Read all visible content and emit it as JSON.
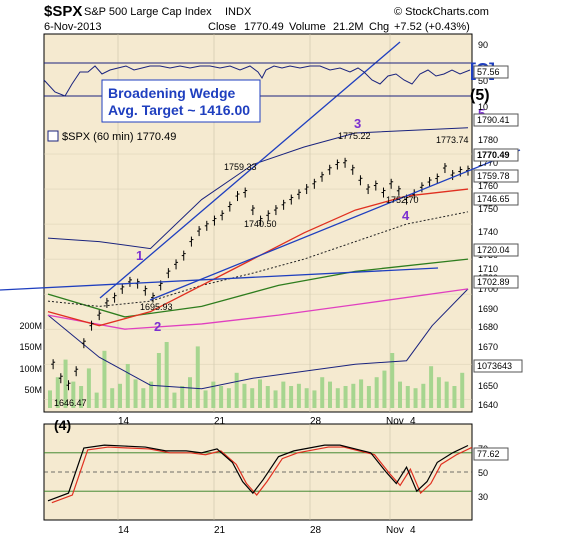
{
  "header": {
    "symbol": "$SPX",
    "name": "S&P 500 Large Cap Index",
    "exchange": "INDX",
    "watermark": "© StockCharts.com",
    "date": "6-Nov-2013",
    "close_label": "Close",
    "close": "1770.49",
    "volume_label": "Volume",
    "volume": "21.2M",
    "chg_label": "Chg",
    "chg": "+7.52 (+0.43%)"
  },
  "colors": {
    "panel_bg": "#f5ead0",
    "price": "#000000",
    "ma_red": "#e03020",
    "ma_green": "#2e7d1e",
    "ma_magenta": "#e040c0",
    "bollinger": "#1a237e",
    "trend_lines": "#1f3fbf",
    "volume_bar": "#a6d58f",
    "wave_label": "#7b2fd0",
    "rsi_line": "#000000",
    "rsi_signal": "#e03020"
  },
  "price_panel": {
    "legend": "$SPX (60 min) 1770.49",
    "annotation": {
      "line1": "Broadening Wedge",
      "line2": "Avg. Target ~ 1416.00"
    },
    "y_ticks": [
      "1780",
      "1770",
      "1760",
      "1750",
      "1740",
      "1730",
      "1720",
      "1710",
      "1700",
      "1690",
      "1680",
      "1670",
      "1660",
      "1650",
      "1640"
    ],
    "top_ticks": [
      "90",
      "50",
      "10"
    ],
    "volume_ticks": [
      "200M",
      "150M",
      "100M",
      "50M"
    ],
    "price_labels": [
      "1759.33",
      "1775.22",
      "1773.74",
      "1740.50",
      "1752.70",
      "1695.93",
      "1646.47"
    ],
    "right_tags": [
      "57.56",
      "1790.41",
      "1770.49",
      "1759.78",
      "1746.65",
      "1720.04",
      "1702.89",
      "1073643"
    ],
    "wave_labels": [
      "1",
      "2",
      "3",
      "4",
      "5"
    ],
    "corner_labels": {
      "c": "[C]",
      "five": "(5)"
    }
  },
  "rsi_panel": {
    "label": "(4)",
    "ticks": [
      "70",
      "50",
      "30"
    ],
    "value": "77.62"
  },
  "x_axis": {
    "labels": [
      "14",
      "21",
      "28",
      "Nov",
      "4"
    ]
  },
  "chart_data": {
    "type": "line",
    "title": "$SPX S&P 500 Large Cap Index INDX",
    "ylim": [
      1635,
      1788
    ],
    "candles": [
      {
        "x": 2,
        "y": 1660
      },
      {
        "x": 5,
        "y": 1652
      },
      {
        "x": 8,
        "y": 1648
      },
      {
        "x": 11,
        "y": 1656
      },
      {
        "x": 14,
        "y": 1672
      },
      {
        "x": 17,
        "y": 1682
      },
      {
        "x": 20,
        "y": 1688
      },
      {
        "x": 23,
        "y": 1695
      },
      {
        "x": 26,
        "y": 1698
      },
      {
        "x": 29,
        "y": 1703
      },
      {
        "x": 32,
        "y": 1707
      },
      {
        "x": 35,
        "y": 1706
      },
      {
        "x": 38,
        "y": 1702
      },
      {
        "x": 41,
        "y": 1698
      },
      {
        "x": 44,
        "y": 1705
      },
      {
        "x": 47,
        "y": 1712
      },
      {
        "x": 50,
        "y": 1717
      },
      {
        "x": 53,
        "y": 1722
      },
      {
        "x": 56,
        "y": 1730
      },
      {
        "x": 59,
        "y": 1736
      },
      {
        "x": 62,
        "y": 1739
      },
      {
        "x": 65,
        "y": 1742
      },
      {
        "x": 68,
        "y": 1745
      },
      {
        "x": 71,
        "y": 1750
      },
      {
        "x": 74,
        "y": 1756
      },
      {
        "x": 77,
        "y": 1758
      },
      {
        "x": 80,
        "y": 1748
      },
      {
        "x": 83,
        "y": 1742
      },
      {
        "x": 86,
        "y": 1745
      },
      {
        "x": 89,
        "y": 1748
      },
      {
        "x": 92,
        "y": 1751
      },
      {
        "x": 95,
        "y": 1754
      },
      {
        "x": 98,
        "y": 1757
      },
      {
        "x": 101,
        "y": 1760
      },
      {
        "x": 104,
        "y": 1763
      },
      {
        "x": 107,
        "y": 1767
      },
      {
        "x": 110,
        "y": 1771
      },
      {
        "x": 113,
        "y": 1774
      },
      {
        "x": 116,
        "y": 1775
      },
      {
        "x": 119,
        "y": 1771
      },
      {
        "x": 122,
        "y": 1765
      },
      {
        "x": 125,
        "y": 1760
      },
      {
        "x": 128,
        "y": 1762
      },
      {
        "x": 131,
        "y": 1758
      },
      {
        "x": 134,
        "y": 1763
      },
      {
        "x": 137,
        "y": 1759
      },
      {
        "x": 140,
        "y": 1754
      },
      {
        "x": 143,
        "y": 1757
      },
      {
        "x": 146,
        "y": 1761
      },
      {
        "x": 149,
        "y": 1764
      },
      {
        "x": 152,
        "y": 1766
      },
      {
        "x": 155,
        "y": 1772
      },
      {
        "x": 158,
        "y": 1768
      },
      {
        "x": 161,
        "y": 1770
      },
      {
        "x": 164,
        "y": 1770.5
      }
    ],
    "ma_red": [
      [
        0,
        1690
      ],
      [
        20,
        1682
      ],
      [
        40,
        1690
      ],
      [
        60,
        1705
      ],
      [
        80,
        1720
      ],
      [
        100,
        1735
      ],
      [
        120,
        1748
      ],
      [
        140,
        1756
      ],
      [
        164,
        1760
      ]
    ],
    "ma_dotted": [
      [
        0,
        1696
      ],
      [
        20,
        1693
      ],
      [
        40,
        1696
      ],
      [
        60,
        1705
      ],
      [
        80,
        1712
      ],
      [
        100,
        1720
      ],
      [
        120,
        1730
      ],
      [
        140,
        1740
      ],
      [
        164,
        1747
      ]
    ],
    "ma_green": [
      [
        0,
        1700
      ],
      [
        30,
        1687
      ],
      [
        60,
        1693
      ],
      [
        90,
        1705
      ],
      [
        120,
        1713
      ],
      [
        164,
        1720
      ]
    ],
    "ma_magenta": [
      [
        0,
        1688
      ],
      [
        30,
        1680
      ],
      [
        60,
        1683
      ],
      [
        90,
        1688
      ],
      [
        120,
        1694
      ],
      [
        164,
        1703
      ]
    ],
    "bollinger_upper": [
      [
        0,
        1732
      ],
      [
        20,
        1730
      ],
      [
        40,
        1726
      ],
      [
        60,
        1754
      ],
      [
        80,
        1774
      ],
      [
        100,
        1784
      ],
      [
        120,
        1792
      ],
      [
        164,
        1795
      ]
    ],
    "bollinger_lower": [
      [
        0,
        1688
      ],
      [
        20,
        1664
      ],
      [
        40,
        1648
      ],
      [
        60,
        1646
      ],
      [
        80,
        1652
      ],
      [
        100,
        1656
      ],
      [
        120,
        1660
      ],
      [
        140,
        1662
      ],
      [
        150,
        1682
      ],
      [
        164,
        1703
      ]
    ],
    "volume": [
      8,
      14,
      22,
      12,
      10,
      18,
      7,
      26,
      9,
      11,
      20,
      13,
      9,
      12,
      25,
      30,
      7,
      10,
      14,
      28,
      8,
      12,
      10,
      9,
      16,
      11,
      9,
      13,
      10,
      8,
      12,
      10,
      11,
      9,
      8,
      14,
      12,
      9,
      10,
      11,
      13,
      10,
      14,
      17,
      25,
      12,
      10,
      9,
      11,
      19,
      14,
      12,
      10,
      16
    ],
    "rsi": [
      [
        0,
        20
      ],
      [
        8,
        28
      ],
      [
        14,
        75
      ],
      [
        22,
        78
      ],
      [
        30,
        77
      ],
      [
        38,
        76
      ],
      [
        46,
        72
      ],
      [
        54,
        72
      ],
      [
        60,
        70
      ],
      [
        66,
        74
      ],
      [
        72,
        60
      ],
      [
        76,
        40
      ],
      [
        80,
        28
      ],
      [
        84,
        42
      ],
      [
        90,
        66
      ],
      [
        96,
        72
      ],
      [
        102,
        75
      ],
      [
        108,
        78
      ],
      [
        114,
        78
      ],
      [
        120,
        74
      ],
      [
        126,
        70
      ],
      [
        132,
        50
      ],
      [
        136,
        38
      ],
      [
        140,
        55
      ],
      [
        144,
        30
      ],
      [
        148,
        40
      ],
      [
        152,
        60
      ],
      [
        158,
        70
      ],
      [
        164,
        77.62
      ]
    ]
  }
}
